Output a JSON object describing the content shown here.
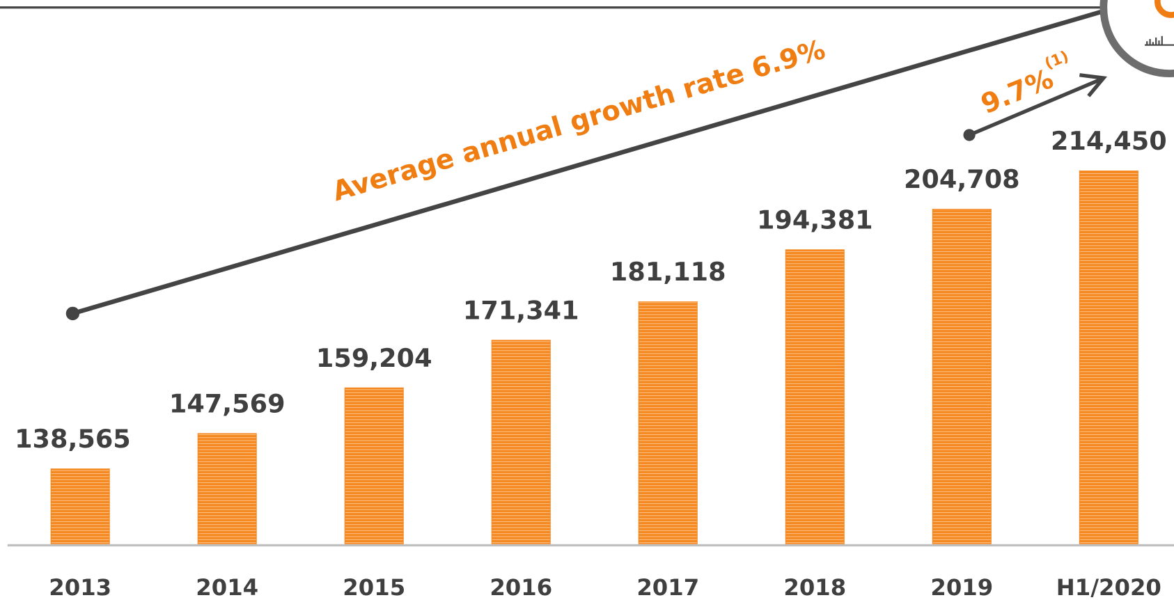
{
  "chart_data": {
    "type": "bar",
    "categories": [
      "2013",
      "2014",
      "2015",
      "2016",
      "2017",
      "2018",
      "2019",
      "H1/2020"
    ],
    "values": [
      138565,
      147569,
      159204,
      171341,
      181118,
      194381,
      204708,
      214450
    ],
    "value_labels": [
      "138,565",
      "147,569",
      "159,204",
      "171,341",
      "181,118",
      "194,381",
      "204,708",
      "214,450"
    ],
    "color": "#f5871f",
    "ylim": [
      119500,
      258000
    ],
    "annotations": [
      "Average annual growth rate 6.9%",
      "9.7%",
      "(1)"
    ]
  }
}
